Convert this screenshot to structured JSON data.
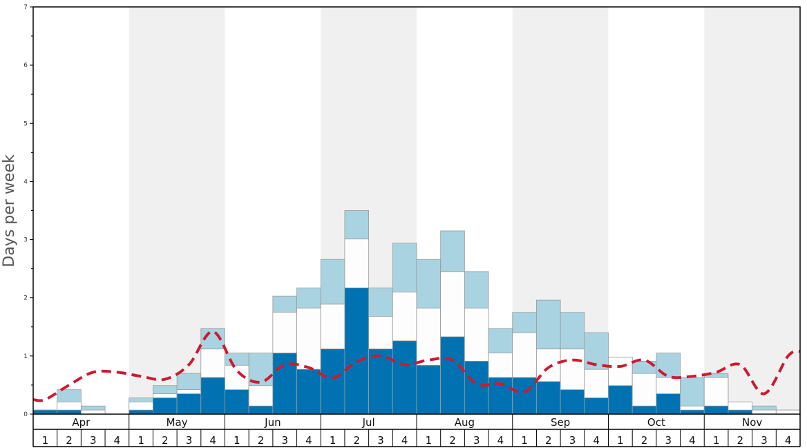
{
  "chart_data": {
    "type": "bar",
    "ylabel": "Days per week",
    "ylim": [
      0,
      7
    ],
    "yticks": [
      "0",
      "1",
      "2",
      "3",
      "4",
      "5",
      "6",
      "7"
    ],
    "months": [
      "Apr",
      "May",
      "Jun",
      "Jul",
      "Aug",
      "Sep",
      "Oct",
      "Nov"
    ],
    "weeks": [
      "1",
      "2",
      "3",
      "4"
    ],
    "colors": {
      "dark": "#0072b2",
      "white": "#fdfdfd",
      "light": "#a9d3e0",
      "line": "#cc1a30",
      "band": "#f0f0f0"
    },
    "series": [
      {
        "values": [
          0.07,
          0.07,
          0,
          0,
          0.07,
          0.28,
          0.35,
          0.63,
          0.42,
          0.14,
          1.05,
          0.77,
          1.12,
          2.17,
          1.12,
          1.26,
          0.84,
          1.33,
          0.91,
          0.63,
          0.63,
          0.56,
          0.42,
          0.28,
          0.49,
          0.14,
          0.35,
          0.07,
          0.14,
          0.07,
          0,
          0
        ]
      },
      {
        "values": [
          0.07,
          0.21,
          0.07,
          0,
          0.21,
          0.35,
          0.42,
          1.12,
          0.84,
          0.49,
          1.75,
          1.82,
          1.89,
          3.01,
          1.68,
          2.1,
          1.82,
          2.45,
          1.82,
          1.05,
          1.4,
          1.12,
          1.12,
          0.77,
          0.98,
          0.7,
          0.63,
          0.14,
          0.63,
          0.21,
          0.07,
          0.07
        ]
      },
      {
        "values": [
          0.07,
          0.42,
          0.14,
          0,
          0.28,
          0.49,
          0.7,
          1.47,
          1.05,
          1.05,
          2.03,
          2.17,
          2.66,
          3.5,
          2.17,
          2.94,
          2.66,
          3.15,
          2.45,
          1.47,
          1.75,
          1.96,
          1.75,
          1.4,
          0.98,
          0.91,
          1.05,
          0.63,
          0.7,
          0.21,
          0.14,
          0.07
        ]
      },
      {
        "type": "line",
        "style": "dashed",
        "values": [
          0.25,
          0.5,
          0.72,
          0.72,
          0.65,
          0.6,
          0.85,
          1.42,
          0.75,
          0.55,
          0.85,
          0.8,
          0.62,
          0.9,
          1.0,
          0.85,
          0.93,
          0.93,
          0.52,
          0.52,
          0.38,
          0.8,
          0.93,
          0.85,
          0.82,
          0.93,
          0.65,
          0.65,
          0.72,
          0.85,
          0.35,
          1.0
        ]
      }
    ],
    "grid": false
  }
}
